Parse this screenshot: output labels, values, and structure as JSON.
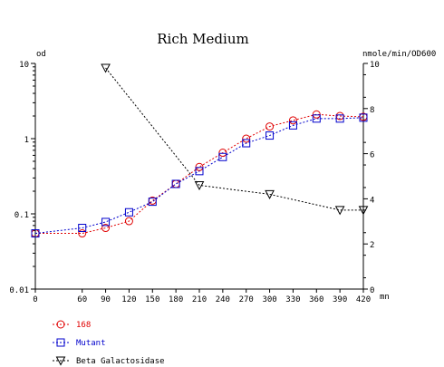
{
  "chart_data": {
    "type": "line",
    "title": "Rich Medium",
    "y_left_label": "od",
    "y_right_label": "nmole/min/OD600",
    "x_unit": "mn",
    "x_ticks": [
      0,
      60,
      90,
      120,
      150,
      180,
      210,
      240,
      270,
      300,
      330,
      360,
      390,
      420
    ],
    "x_range": [
      0,
      420
    ],
    "y_left_scale": "log",
    "y_left_range": [
      0.01,
      10
    ],
    "y_left_ticks": [
      "0.01",
      "0.1",
      "1",
      "10"
    ],
    "y_right_range": [
      0,
      10
    ],
    "y_right_ticks": [
      "0",
      "2",
      "4",
      "6",
      "8",
      "10"
    ],
    "grid": false,
    "legend_position": "bottom-left",
    "series": [
      {
        "name": "168",
        "axis": "left",
        "marker": "circle",
        "color": "#e00000",
        "x": [
          0,
          60,
          90,
          120,
          150,
          180,
          210,
          240,
          270,
          300,
          330,
          360,
          390,
          420
        ],
        "y": [
          0.055,
          0.055,
          0.065,
          0.08,
          0.15,
          0.25,
          0.42,
          0.65,
          1.0,
          1.45,
          1.75,
          2.1,
          2.0,
          1.95
        ]
      },
      {
        "name": "Mutant",
        "axis": "left",
        "marker": "square",
        "color": "#0000cc",
        "x": [
          0,
          60,
          90,
          120,
          150,
          180,
          210,
          240,
          270,
          300,
          330,
          360,
          390,
          420
        ],
        "y": [
          0.055,
          0.065,
          0.078,
          0.105,
          0.145,
          0.25,
          0.37,
          0.57,
          0.87,
          1.1,
          1.5,
          1.85,
          1.85,
          1.9
        ]
      },
      {
        "name": "Beta Galactosidase",
        "axis": "right",
        "marker": "triangle-down",
        "color": "#000000",
        "x": [
          90,
          210,
          300,
          390,
          420
        ],
        "y": [
          9.8,
          4.6,
          4.2,
          3.5,
          3.5
        ]
      }
    ]
  }
}
